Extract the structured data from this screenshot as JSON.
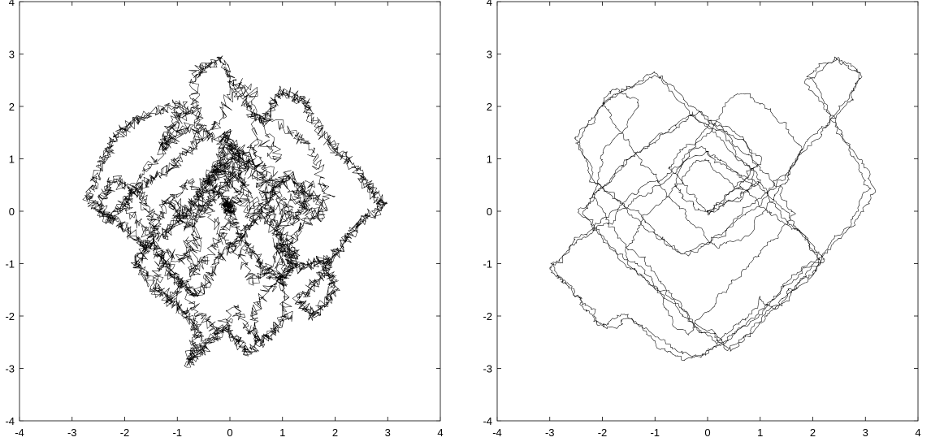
{
  "chart_data": [
    {
      "type": "line",
      "title": "",
      "xlabel": "",
      "ylabel": "",
      "xlim": [
        -4,
        4
      ],
      "ylim": [
        -4,
        4
      ],
      "xticks": [
        -4,
        -3,
        -2,
        -1,
        0,
        1,
        2,
        3,
        4
      ],
      "yticks": [
        -4,
        -3,
        -2,
        -1,
        0,
        1,
        2,
        3,
        4
      ],
      "xtick_labels": [
        "-4",
        "-3",
        "-2",
        "-1",
        "0",
        "1",
        "2",
        "3",
        "4"
      ],
      "ytick_labels": [
        "-4",
        "-3",
        "-2",
        "-1",
        "0",
        "1",
        "2",
        "3",
        "4"
      ],
      "grid": false,
      "color": "#000000",
      "series": [
        {
          "style": "jagged",
          "extent_x": [
            -2.9,
            3.1
          ],
          "extent_y": [
            -3.0,
            3.0
          ],
          "x": [
            0,
            -0.4,
            0.3,
            -0.8,
            -1.3,
            -0.9,
            -1.7,
            -2.1,
            -2.4,
            -2.7,
            -2.3,
            -1.8,
            -1.2,
            -0.6,
            -0.7,
            -0.2,
            0.2,
            0.6,
            1.0,
            1.4,
            1.8,
            2.3,
            2.7,
            2.9,
            2.4,
            2.0,
            1.7,
            1.3,
            1.6,
            2.0,
            1.8,
            1.3,
            0.9,
            1.1,
            0.7,
            0.3,
            -0.1,
            -0.5,
            -0.8,
            -0.6,
            -0.9,
            -1.4,
            -1.8,
            -1.5,
            -1.0,
            -0.6,
            -0.2,
            0.3,
            0.7,
            1.1,
            1.5,
            1.2,
            0.8,
            0.4,
            0.0,
            -0.4,
            -0.8,
            -1.2,
            -1.6,
            -2.0,
            -2.5,
            -2.2,
            -1.7,
            -1.3,
            -0.9,
            -0.5,
            -0.2,
            -0.1,
            0.2,
            0.6,
            0.9,
            1.2,
            1.0,
            0.6,
            0.2,
            -0.1,
            0.0
          ],
          "y": [
            0,
            0.6,
            1.1,
            1.6,
            1.2,
            2.1,
            1.8,
            1.5,
            1.0,
            0.3,
            -0.2,
            0.4,
            0.8,
            1.3,
            2.6,
            2.9,
            2.2,
            1.7,
            2.3,
            2.1,
            1.4,
            0.9,
            0.4,
            0.1,
            -0.3,
            -0.8,
            -1.3,
            -1.7,
            -2.0,
            -1.5,
            -0.9,
            -1.1,
            -0.6,
            -2.0,
            -2.4,
            -2.7,
            -2.2,
            -2.6,
            -2.9,
            -2.3,
            -1.9,
            -1.5,
            -1.0,
            -0.6,
            -1.3,
            -1.6,
            -0.9,
            -0.4,
            0.2,
            0.7,
            0.3,
            -0.2,
            0.5,
            1.0,
            0.6,
            0.2,
            -0.3,
            0.2,
            -0.7,
            -0.3,
            0.1,
            0.6,
            0.3,
            -0.5,
            -0.1,
            0.4,
            0.9,
            1.5,
            1.0,
            0.5,
            -0.4,
            -0.9,
            -1.4,
            -1.0,
            -0.5,
            0.2,
            0.0
          ]
        }
      ]
    },
    {
      "type": "line",
      "title": "",
      "xlabel": "",
      "ylabel": "",
      "xlim": [
        -4,
        4
      ],
      "ylim": [
        -4,
        4
      ],
      "xticks": [
        -4,
        -3,
        -2,
        -1,
        0,
        1,
        2,
        3,
        4
      ],
      "yticks": [
        -4,
        -3,
        -2,
        -1,
        0,
        1,
        2,
        3,
        4
      ],
      "xtick_labels": [
        "-4",
        "-3",
        "-2",
        "-1",
        "0",
        "1",
        "2",
        "3",
        "4"
      ],
      "ytick_labels": [
        "-4",
        "-3",
        "-2",
        "-1",
        "0",
        "1",
        "2",
        "3",
        "4"
      ],
      "grid": false,
      "color": "#000000",
      "series": [
        {
          "style": "smooth",
          "extent_x": [
            -3.0,
            3.2
          ],
          "extent_y": [
            -3.0,
            3.0
          ],
          "x": [
            0,
            0.5,
            1.0,
            0.4,
            -0.3,
            -0.9,
            -1.5,
            -2.1,
            -2.5,
            -2.2,
            -1.6,
            -1.0,
            -0.4,
            0.3,
            0.9,
            1.5,
            2.1,
            2.6,
            2.9,
            2.5,
            1.9,
            2.4,
            2.8,
            3.1,
            2.7,
            2.1,
            1.5,
            0.9,
            0.3,
            -0.3,
            -0.9,
            -1.5,
            -2.0,
            -2.4,
            -2.8,
            -3.0,
            -2.5,
            -1.9,
            -1.3,
            -0.7,
            -0.1,
            0.5,
            1.1,
            1.7,
            2.2,
            1.7,
            1.1,
            0.5,
            -0.1,
            -0.7,
            -1.3,
            -1.9,
            -2.4,
            -2.0,
            -1.4,
            -0.8,
            -0.2,
            0.4,
            1.0,
            0.6,
            0.0
          ],
          "y": [
            0,
            0.4,
            0.9,
            1.5,
            2.0,
            2.6,
            2.4,
            2.0,
            1.3,
            0.6,
            0.1,
            -0.5,
            -0.9,
            -0.4,
            0.2,
            0.8,
            1.4,
            2.0,
            2.6,
            2.9,
            2.5,
            1.8,
            1.1,
            0.4,
            -0.3,
            -0.9,
            -1.4,
            -2.0,
            -2.6,
            -2.9,
            -2.5,
            -2.0,
            -2.2,
            -1.8,
            -1.4,
            -1.0,
            -0.5,
            -0.1,
            0.3,
            0.7,
            1.2,
            0.8,
            0.3,
            -0.3,
            -0.9,
            -1.5,
            -2.1,
            -2.7,
            -2.3,
            -1.7,
            -1.1,
            -0.6,
            0.0,
            0.5,
            1.0,
            1.5,
            1.9,
            1.3,
            0.6,
            0.2,
            0.0
          ]
        }
      ]
    }
  ]
}
